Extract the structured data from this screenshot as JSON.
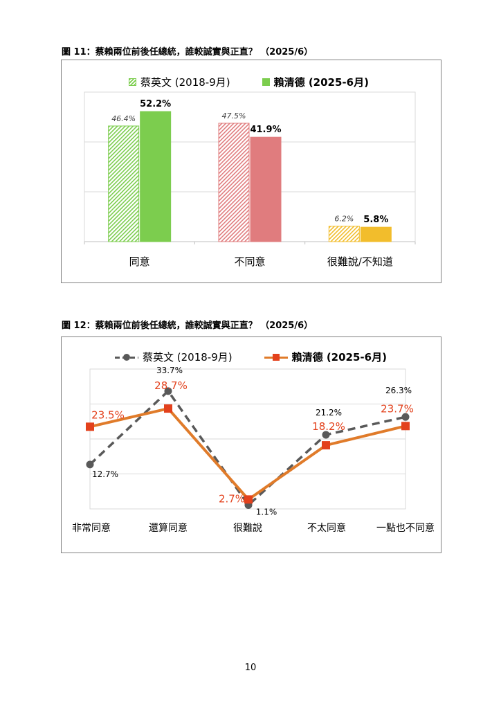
{
  "page": {
    "number": "10"
  },
  "fig11": {
    "title": "圖 11：蔡賴兩位前後任總統，誰較誠實與正直？ （2025/6）"
  },
  "fig12": {
    "title": "圖 12：蔡賴兩位前後任總統，誰較誠實與正直？ （2025/6）"
  },
  "colors": {
    "agree": "#7ccd4e",
    "disagree": "#e07c7e",
    "hard": "#f2bd2c",
    "tsai_line": "#595959",
    "lai_line": "#e07b2a",
    "lai_marker": "#e3411c",
    "lai_label": "#e3411c",
    "grid": "#d9d9d9"
  },
  "chart_data": [
    {
      "type": "bar",
      "categories": [
        "同意",
        "不同意",
        "很難說/不知道"
      ],
      "series": [
        {
          "name": "蔡英文 (2018-9月)",
          "values": [
            46.4,
            47.5,
            6.2
          ],
          "labels": [
            "46.4%",
            "47.5%",
            "6.2%"
          ],
          "style": "hatched"
        },
        {
          "name": "賴清德 (2025-6月)",
          "values": [
            52.2,
            41.9,
            5.8
          ],
          "labels": [
            "52.2%",
            "41.9%",
            "5.8%"
          ],
          "style": "solid"
        }
      ],
      "ylim": [
        0,
        60
      ],
      "grid": true,
      "legend": "top-center"
    },
    {
      "type": "line",
      "categories": [
        "非常同意",
        "還算同意",
        "很難說",
        "不太同意",
        "一點也不同意"
      ],
      "series": [
        {
          "name": "蔡英文 (2018-9月)",
          "values": [
            12.7,
            33.7,
            1.1,
            21.2,
            26.3
          ],
          "labels": [
            "12.7%",
            "33.7%",
            "1.1%",
            "21.2%",
            "26.3%"
          ],
          "line": "dashed",
          "marker": "circle"
        },
        {
          "name": "賴清德 (2025-6月)",
          "values": [
            23.5,
            28.7,
            2.7,
            18.2,
            23.7
          ],
          "labels": [
            "23.5%",
            "28.7%",
            "2.7%",
            "18.2%",
            "23.7%"
          ],
          "line": "solid",
          "marker": "square"
        }
      ],
      "ylim": [
        0,
        40
      ],
      "grid": true,
      "legend": "top-center"
    }
  ]
}
